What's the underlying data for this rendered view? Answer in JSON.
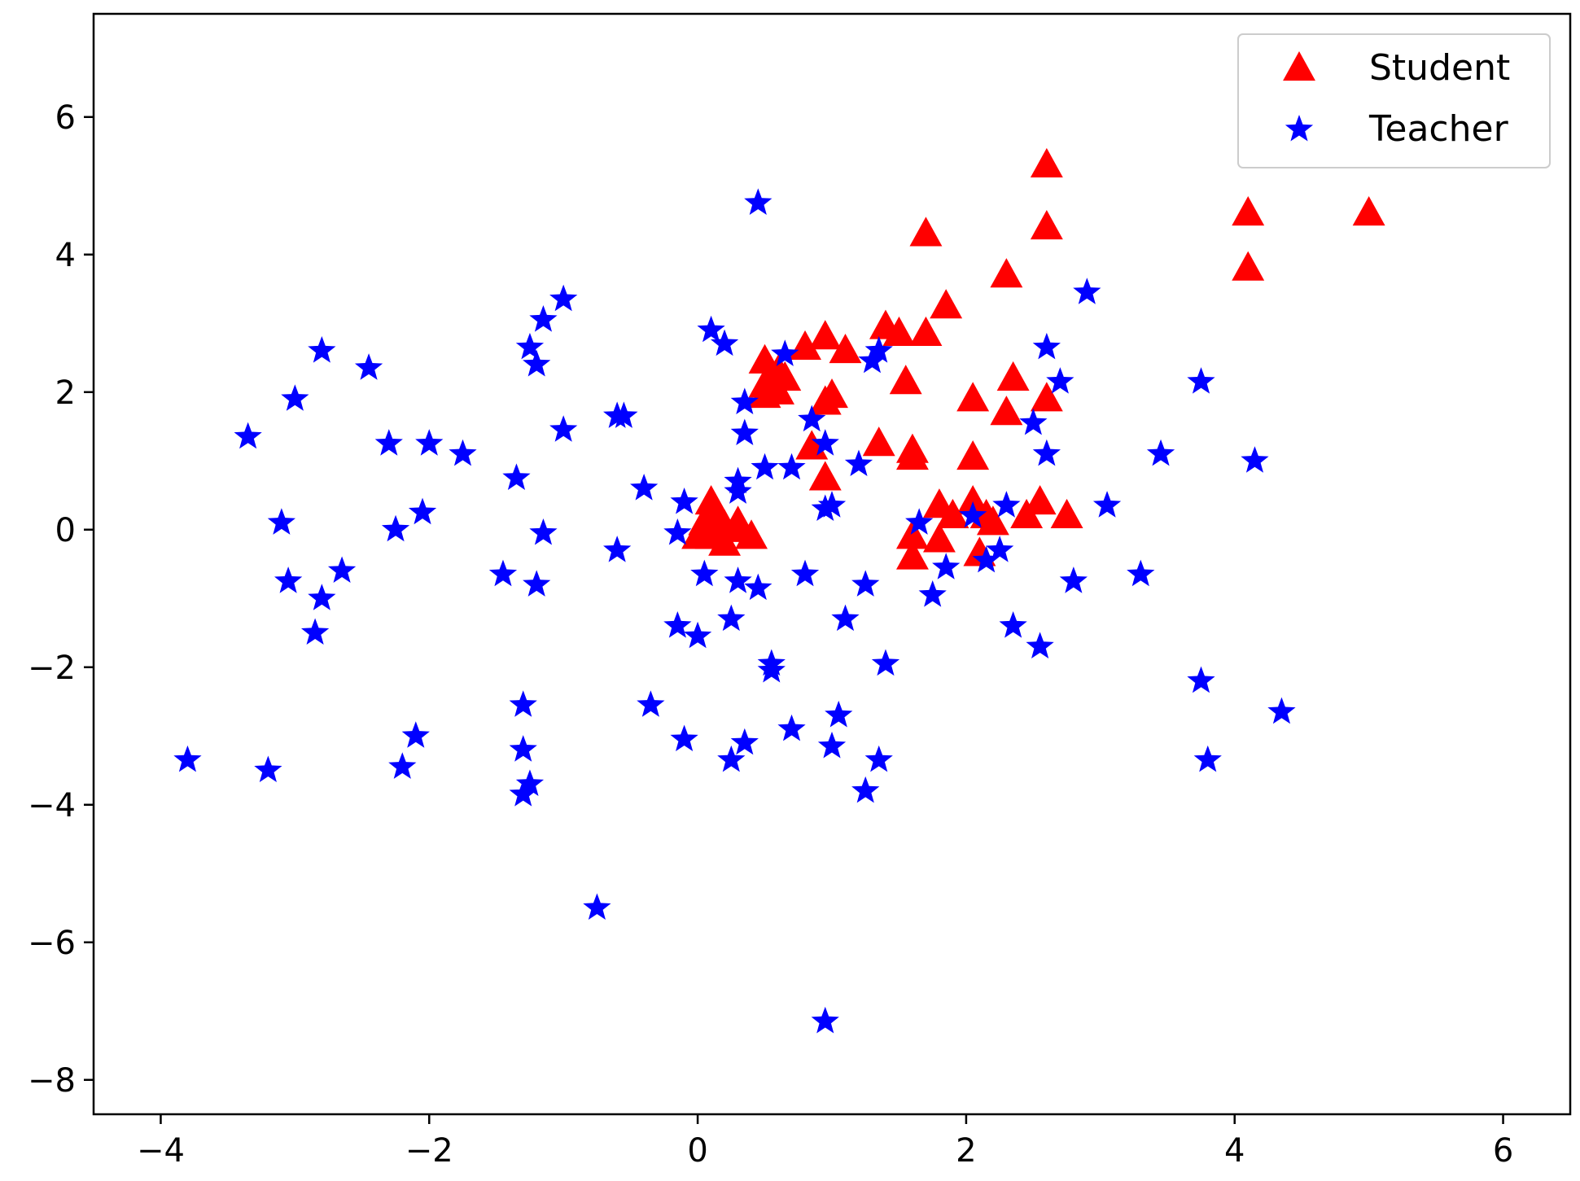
{
  "chart_data": {
    "type": "scatter",
    "title": "",
    "xlabel": "",
    "ylabel": "",
    "xlim": [
      -4.5,
      6.5
    ],
    "ylim": [
      -8.5,
      7.5
    ],
    "xticks": [
      -4,
      -2,
      0,
      2,
      4,
      6
    ],
    "yticks": [
      -8,
      -6,
      -4,
      -2,
      0,
      2,
      4,
      6
    ],
    "xtick_labels": [
      "−4",
      "−2",
      "0",
      "2",
      "4",
      "6"
    ],
    "ytick_labels": [
      "−8",
      "−6",
      "−4",
      "−2",
      "0",
      "2",
      "4",
      "6"
    ],
    "grid": false,
    "legend": {
      "placement": "top-right",
      "entries": [
        "Student",
        "Teacher"
      ]
    },
    "series": [
      {
        "name": "Student",
        "marker": "triangle",
        "color": "#ff0000",
        "points": [
          [
            2.6,
            5.3
          ],
          [
            2.6,
            4.4
          ],
          [
            1.7,
            4.3
          ],
          [
            4.1,
            4.6
          ],
          [
            5.0,
            4.6
          ],
          [
            4.1,
            3.8
          ],
          [
            2.3,
            3.7
          ],
          [
            1.85,
            3.25
          ],
          [
            1.4,
            2.95
          ],
          [
            1.5,
            2.85
          ],
          [
            1.7,
            2.85
          ],
          [
            0.95,
            2.8
          ],
          [
            0.8,
            2.65
          ],
          [
            1.1,
            2.6
          ],
          [
            0.5,
            2.45
          ],
          [
            0.6,
            2.3
          ],
          [
            0.65,
            2.2
          ],
          [
            0.5,
            2.1
          ],
          [
            0.6,
            2.0
          ],
          [
            0.5,
            1.95
          ],
          [
            1.55,
            2.15
          ],
          [
            2.35,
            2.2
          ],
          [
            2.05,
            1.9
          ],
          [
            2.6,
            1.9
          ],
          [
            1.0,
            1.95
          ],
          [
            0.95,
            1.85
          ],
          [
            2.3,
            1.7
          ],
          [
            0.85,
            1.2
          ],
          [
            1.35,
            1.25
          ],
          [
            1.6,
            1.15
          ],
          [
            1.6,
            1.05
          ],
          [
            2.05,
            1.05
          ],
          [
            0.95,
            0.75
          ],
          [
            0.1,
            0.4
          ],
          [
            0.15,
            0.2
          ],
          [
            0.05,
            0.1
          ],
          [
            0.2,
            0.05
          ],
          [
            0.3,
            0.0
          ],
          [
            0.1,
            -0.1
          ],
          [
            0.4,
            -0.1
          ],
          [
            0.0,
            -0.1
          ],
          [
            0.2,
            -0.2
          ],
          [
            0.3,
            0.1
          ],
          [
            1.8,
            0.35
          ],
          [
            1.9,
            0.2
          ],
          [
            2.05,
            0.4
          ],
          [
            2.15,
            0.2
          ],
          [
            2.2,
            0.1
          ],
          [
            2.45,
            0.2
          ],
          [
            2.55,
            0.4
          ],
          [
            2.75,
            0.2
          ],
          [
            1.6,
            -0.1
          ],
          [
            1.8,
            -0.15
          ],
          [
            1.6,
            -0.4
          ],
          [
            2.1,
            -0.35
          ]
        ]
      },
      {
        "name": "Teacher",
        "marker": "star",
        "color": "#0000ff",
        "points": [
          [
            0.45,
            4.75
          ],
          [
            -1.0,
            3.35
          ],
          [
            -1.15,
            3.05
          ],
          [
            0.1,
            2.9
          ],
          [
            0.2,
            2.7
          ],
          [
            -1.25,
            2.65
          ],
          [
            -1.2,
            2.4
          ],
          [
            -2.8,
            2.6
          ],
          [
            -2.45,
            2.35
          ],
          [
            0.65,
            2.55
          ],
          [
            1.35,
            2.6
          ],
          [
            1.3,
            2.45
          ],
          [
            2.6,
            2.65
          ],
          [
            2.9,
            3.45
          ],
          [
            2.7,
            2.15
          ],
          [
            3.75,
            2.15
          ],
          [
            -3.0,
            1.9
          ],
          [
            -3.35,
            1.35
          ],
          [
            -2.3,
            1.25
          ],
          [
            -2.0,
            1.25
          ],
          [
            -1.75,
            1.1
          ],
          [
            -1.0,
            1.45
          ],
          [
            -0.6,
            1.65
          ],
          [
            -0.55,
            1.65
          ],
          [
            0.35,
            1.85
          ],
          [
            0.85,
            1.6
          ],
          [
            0.35,
            1.4
          ],
          [
            0.95,
            1.25
          ],
          [
            2.5,
            1.55
          ],
          [
            2.6,
            1.1
          ],
          [
            3.45,
            1.1
          ],
          [
            4.15,
            1.0
          ],
          [
            -1.35,
            0.75
          ],
          [
            -0.4,
            0.6
          ],
          [
            0.5,
            0.9
          ],
          [
            0.7,
            0.9
          ],
          [
            1.2,
            0.95
          ],
          [
            0.3,
            0.7
          ],
          [
            0.3,
            0.55
          ],
          [
            -0.1,
            0.4
          ],
          [
            0.95,
            0.3
          ],
          [
            1.0,
            0.35
          ],
          [
            2.3,
            0.35
          ],
          [
            3.05,
            0.35
          ],
          [
            -3.1,
            0.1
          ],
          [
            -2.05,
            0.25
          ],
          [
            -2.25,
            0.0
          ],
          [
            -1.15,
            -0.05
          ],
          [
            -0.15,
            -0.05
          ],
          [
            1.65,
            0.1
          ],
          [
            2.05,
            0.2
          ],
          [
            2.25,
            -0.3
          ],
          [
            2.15,
            -0.45
          ],
          [
            -3.05,
            -0.75
          ],
          [
            -2.65,
            -0.6
          ],
          [
            -2.8,
            -1.0
          ],
          [
            -2.85,
            -1.5
          ],
          [
            -1.45,
            -0.65
          ],
          [
            -1.2,
            -0.8
          ],
          [
            -0.6,
            -0.3
          ],
          [
            0.05,
            -0.65
          ],
          [
            0.3,
            -0.75
          ],
          [
            0.45,
            -0.85
          ],
          [
            0.8,
            -0.65
          ],
          [
            1.25,
            -0.8
          ],
          [
            1.85,
            -0.55
          ],
          [
            1.75,
            -0.95
          ],
          [
            2.8,
            -0.75
          ],
          [
            3.3,
            -0.65
          ],
          [
            -0.15,
            -1.4
          ],
          [
            0.0,
            -1.55
          ],
          [
            0.25,
            -1.3
          ],
          [
            1.1,
            -1.3
          ],
          [
            2.35,
            -1.4
          ],
          [
            2.55,
            -1.7
          ],
          [
            0.55,
            -1.95
          ],
          [
            0.55,
            -2.05
          ],
          [
            1.4,
            -1.95
          ],
          [
            3.75,
            -2.2
          ],
          [
            4.35,
            -2.65
          ],
          [
            -1.3,
            -2.55
          ],
          [
            -0.35,
            -2.55
          ],
          [
            -2.1,
            -3.0
          ],
          [
            -2.2,
            -3.45
          ],
          [
            -3.8,
            -3.35
          ],
          [
            -3.2,
            -3.5
          ],
          [
            -1.3,
            -3.2
          ],
          [
            -1.25,
            -3.7
          ],
          [
            -1.3,
            -3.85
          ],
          [
            -0.1,
            -3.05
          ],
          [
            0.35,
            -3.1
          ],
          [
            0.25,
            -3.35
          ],
          [
            0.7,
            -2.9
          ],
          [
            1.05,
            -2.7
          ],
          [
            1.0,
            -3.15
          ],
          [
            1.35,
            -3.35
          ],
          [
            1.25,
            -3.8
          ],
          [
            3.8,
            -3.35
          ],
          [
            -0.75,
            -5.5
          ],
          [
            0.95,
            -7.15
          ]
        ]
      }
    ]
  }
}
